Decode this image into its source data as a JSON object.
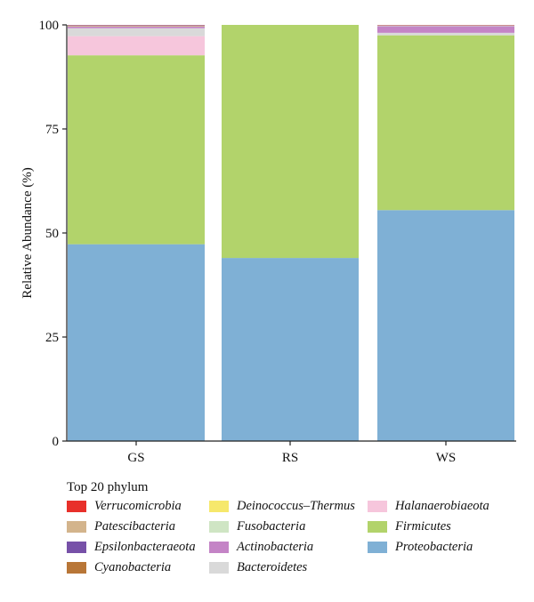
{
  "chart_data": {
    "type": "bar",
    "stacked": true,
    "ylabel": "Relative Abundance (%)",
    "ylim": [
      0,
      100
    ],
    "yticks": [
      "0",
      "25",
      "50",
      "75",
      "100"
    ],
    "categories": [
      "GS",
      "RS",
      "WS"
    ],
    "series": [
      {
        "name": "Proteobacteria",
        "color": "#7fb0d5",
        "values": [
          47.3,
          44.0,
          55.5
        ]
      },
      {
        "name": "Firmicutes",
        "color": "#b2d36b",
        "values": [
          45.4,
          56.0,
          42.0
        ]
      },
      {
        "name": "Halanaerobiaeota",
        "color": "#f6c6dc",
        "values": [
          4.6,
          0.0,
          0.0
        ]
      },
      {
        "name": "Bacteroidetes",
        "color": "#d9d9d9",
        "values": [
          1.9,
          0.0,
          0.6
        ]
      },
      {
        "name": "Actinobacteria",
        "color": "#c484c6",
        "values": [
          0.4,
          0.0,
          1.6
        ]
      },
      {
        "name": "Fusobacteria",
        "color": "#cfe5c4",
        "values": [
          0.1,
          0.0,
          0.1
        ]
      },
      {
        "name": "Deinococcus–Thermus",
        "color": "#f6e86c",
        "values": [
          0.0,
          0.0,
          0.0
        ]
      },
      {
        "name": "Cyanobacteria",
        "color": "#b87637",
        "values": [
          0.1,
          0.0,
          0.05
        ]
      },
      {
        "name": "Epsilonbacteraeota",
        "color": "#7751a8",
        "values": [
          0.1,
          0.0,
          0.05
        ]
      },
      {
        "name": "Patescibacteria",
        "color": "#d3b48c",
        "values": [
          0.05,
          0.0,
          0.05
        ]
      },
      {
        "name": "Verrucomicrobia",
        "color": "#e8302a",
        "values": [
          0.05,
          0.0,
          0.05
        ]
      }
    ]
  },
  "legend": {
    "title": "Top 20 phylum",
    "items": [
      {
        "label": "Verrucomicrobia",
        "color": "#e8302a"
      },
      {
        "label": "Deinococcus–Thermus",
        "color": "#f6e86c"
      },
      {
        "label": "Halanaerobiaeota",
        "color": "#f6c6dc"
      },
      {
        "label": "Patescibacteria",
        "color": "#d3b48c"
      },
      {
        "label": "Fusobacteria",
        "color": "#cfe5c4"
      },
      {
        "label": "Firmicutes",
        "color": "#b2d36b"
      },
      {
        "label": "Epsilonbacteraeota",
        "color": "#7751a8"
      },
      {
        "label": "Actinobacteria",
        "color": "#c484c6"
      },
      {
        "label": "Proteobacteria",
        "color": "#7fb0d5"
      },
      {
        "label": "Cyanobacteria",
        "color": "#b87637"
      },
      {
        "label": "Bacteroidetes",
        "color": "#d9d9d9"
      }
    ]
  }
}
